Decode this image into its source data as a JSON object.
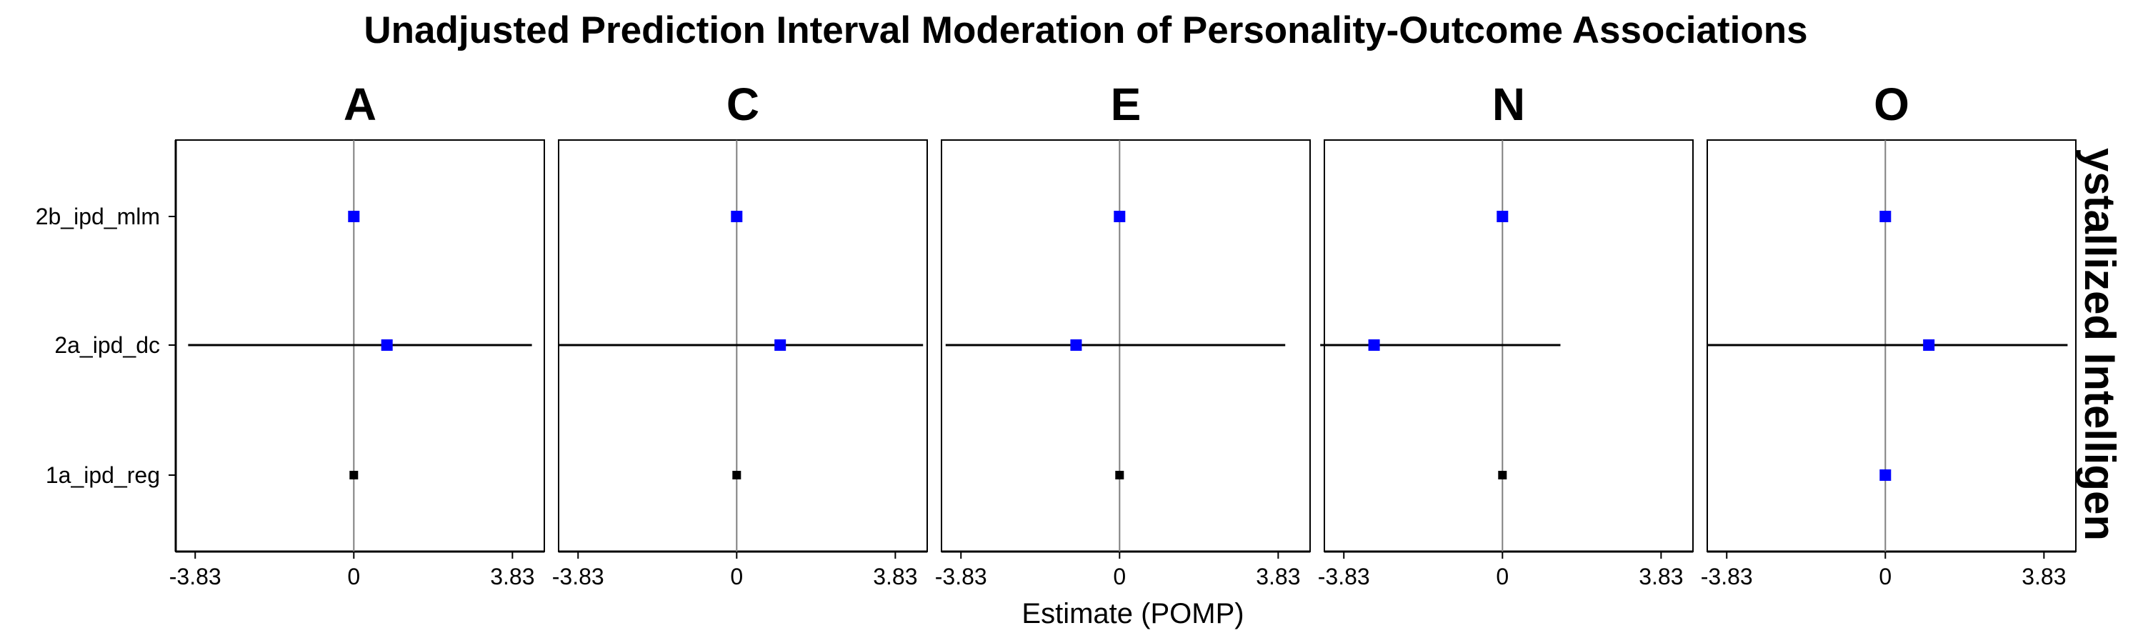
{
  "chart_data": {
    "type": "scatter",
    "title": "Unadjusted Prediction Interval Moderation of Personality-Outcome Associations",
    "xlabel": "Estimate (POMP)",
    "ylabel": "",
    "row_facet_label": "ystallized Intelligen",
    "x_ticks": [
      {
        "value": -3.83,
        "label": "-3.83"
      },
      {
        "value": 0,
        "label": "0"
      },
      {
        "value": 3.83,
        "label": "3.83"
      }
    ],
    "xlim": [
      -4.3,
      4.6
    ],
    "y_categories": [
      "2b_ipd_mlm",
      "2a_ipd_dc",
      "1a_ipd_reg"
    ],
    "reference_line_x": 0,
    "colors": {
      "significant": "#0000ff",
      "nonsignificant": "#000000",
      "interval": "#000000",
      "reference": "#7f7f7f"
    },
    "panels": [
      {
        "label": "A",
        "points": [
          {
            "model": "2b_ipd_mlm",
            "estimate": 0.0,
            "lower": null,
            "upper": null,
            "color": "#0000ff"
          },
          {
            "model": "2a_ipd_dc",
            "estimate": 0.8,
            "lower": -4.0,
            "upper": 4.3,
            "color": "#0000ff"
          },
          {
            "model": "1a_ipd_reg",
            "estimate": 0.0,
            "lower": null,
            "upper": null,
            "color": "#000000"
          }
        ]
      },
      {
        "label": "C",
        "points": [
          {
            "model": "2b_ipd_mlm",
            "estimate": 0.0,
            "lower": null,
            "upper": null,
            "color": "#0000ff"
          },
          {
            "model": "2a_ipd_dc",
            "estimate": 1.05,
            "lower": -4.3,
            "upper": 4.5,
            "color": "#0000ff"
          },
          {
            "model": "1a_ipd_reg",
            "estimate": 0.0,
            "lower": null,
            "upper": null,
            "color": "#000000"
          }
        ]
      },
      {
        "label": "E",
        "points": [
          {
            "model": "2b_ipd_mlm",
            "estimate": 0.0,
            "lower": null,
            "upper": null,
            "color": "#0000ff"
          },
          {
            "model": "2a_ipd_dc",
            "estimate": -1.05,
            "lower": -4.2,
            "upper": 4.0,
            "color": "#0000ff"
          },
          {
            "model": "1a_ipd_reg",
            "estimate": 0.0,
            "lower": null,
            "upper": null,
            "color": "#000000"
          }
        ]
      },
      {
        "label": "N",
        "points": [
          {
            "model": "2b_ipd_mlm",
            "estimate": 0.0,
            "lower": null,
            "upper": null,
            "color": "#0000ff"
          },
          {
            "model": "2a_ipd_dc",
            "estimate": -3.1,
            "lower": -4.4,
            "upper": 1.4,
            "color": "#0000ff"
          },
          {
            "model": "1a_ipd_reg",
            "estimate": 0.0,
            "lower": null,
            "upper": null,
            "color": "#000000"
          }
        ]
      },
      {
        "label": "O",
        "points": [
          {
            "model": "2b_ipd_mlm",
            "estimate": 0.0,
            "lower": null,
            "upper": null,
            "color": "#0000ff"
          },
          {
            "model": "2a_ipd_dc",
            "estimate": 1.05,
            "lower": -4.3,
            "upper": 4.4,
            "color": "#0000ff"
          },
          {
            "model": "1a_ipd_reg",
            "estimate": 0.0,
            "lower": null,
            "upper": null,
            "color": "#0000ff"
          }
        ]
      }
    ]
  }
}
